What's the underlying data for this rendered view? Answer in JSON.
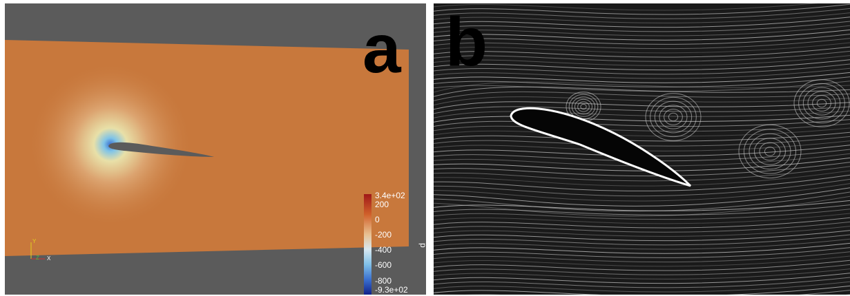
{
  "panels": [
    {
      "label": "a",
      "colorbar": {
        "title": "p",
        "ticks": [
          "3.4e+02",
          "200",
          "0",
          "-200",
          "-400",
          "-600",
          "-800",
          "-9.3e+02"
        ]
      },
      "axes": [
        "Y",
        "Z",
        "X"
      ]
    },
    {
      "label": "b"
    }
  ]
}
